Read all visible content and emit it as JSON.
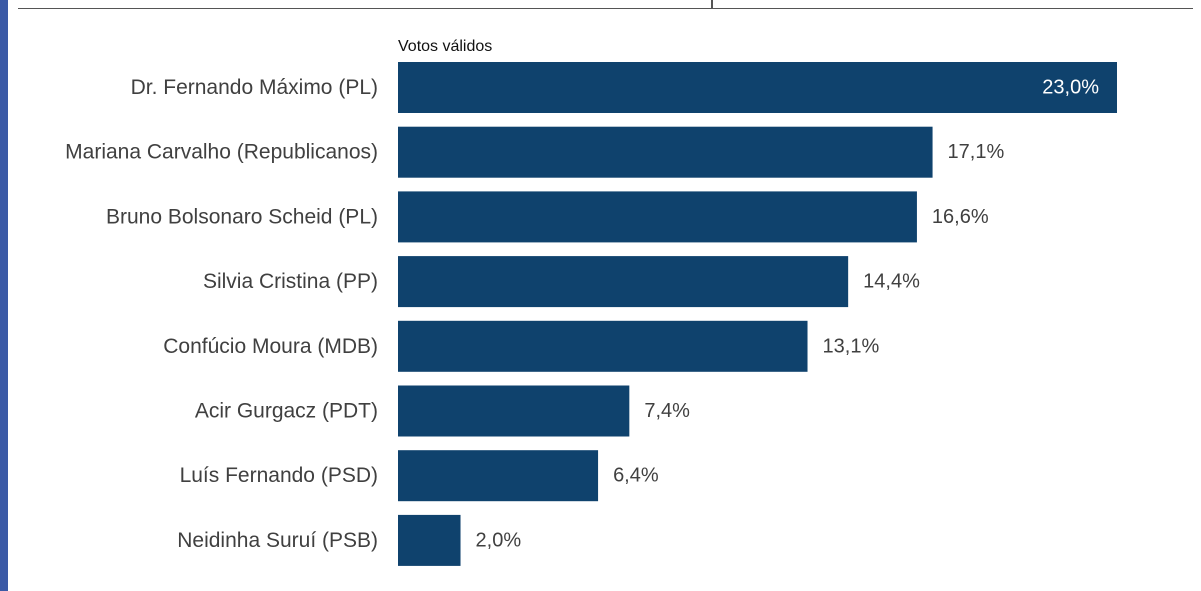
{
  "chart_data": {
    "type": "bar",
    "orientation": "horizontal",
    "series_label": "Votos válidos",
    "categories": [
      "Dr. Fernando Máximo (PL)",
      "Mariana Carvalho (Republicanos)",
      "Bruno Bolsonaro Scheid (PL)",
      "Silvia Cristina (PP)",
      "Confúcio Moura (MDB)",
      "Acir Gurgacz (PDT)",
      "Luís Fernando (PSD)",
      "Neidinha Suruí (PSB)"
    ],
    "values": [
      23.0,
      17.1,
      16.6,
      14.4,
      13.1,
      7.4,
      6.4,
      2.0
    ],
    "value_labels": [
      "23,0%",
      "17,1%",
      "16,6%",
      "14,4%",
      "13,1%",
      "7,4%",
      "6,4%",
      "2,0%"
    ],
    "unit": "%",
    "xlim": [
      0,
      23.0
    ],
    "grid": false,
    "legend": "none",
    "bar_color": "#0f426d",
    "inside_label_color": "#ffffff",
    "outside_label_color": "#404040"
  }
}
